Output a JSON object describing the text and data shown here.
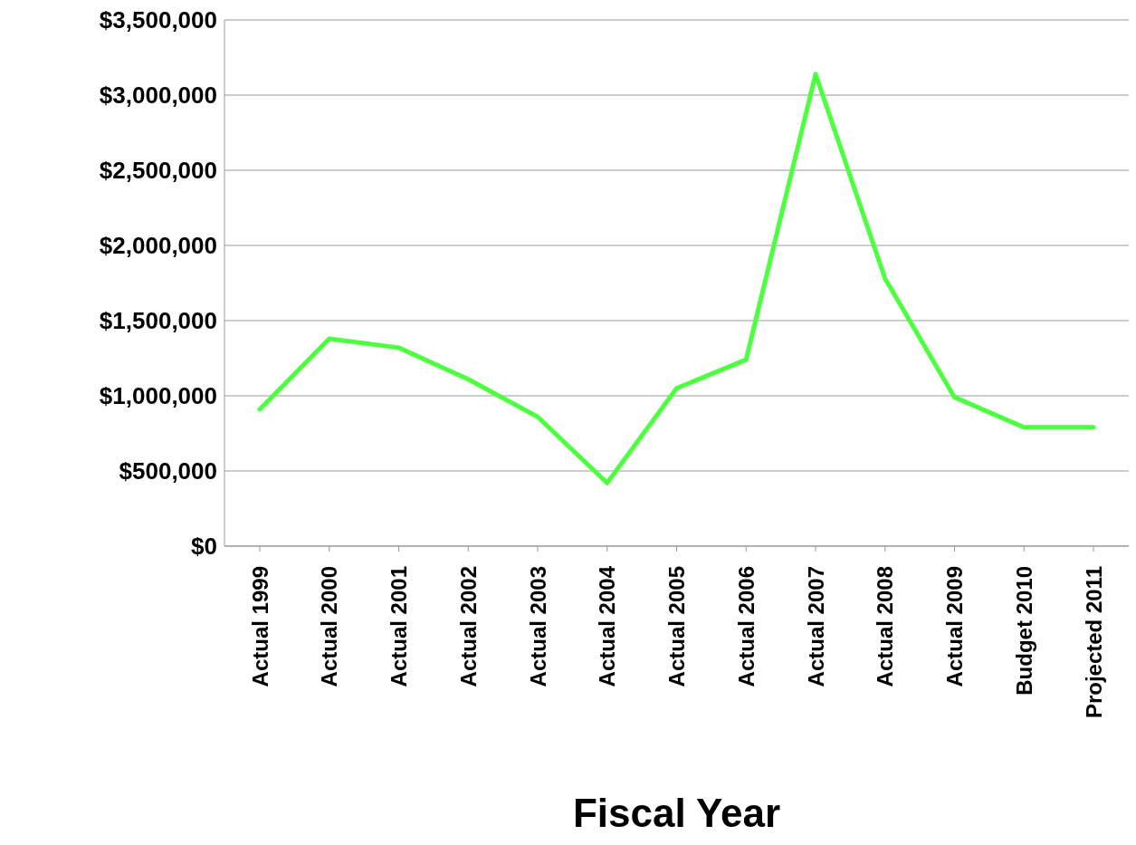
{
  "chart_data": {
    "type": "line",
    "xlabel": "Fiscal Year",
    "categories": [
      "Actual 1999",
      "Actual 2000",
      "Actual 2001",
      "Actual 2002",
      "Actual 2003",
      "Actual 2004",
      "Actual 2005",
      "Actual 2006",
      "Actual 2007",
      "Actual 2008",
      "Actual 2009",
      "Budget 2010",
      "Projected 2011"
    ],
    "series": [
      {
        "color": "#4cff3f",
        "values": [
          910000,
          1380000,
          1320000,
          1110000,
          860000,
          420000,
          1050000,
          1240000,
          3140000,
          1780000,
          990000,
          790000,
          790000
        ]
      }
    ],
    "ylim": [
      0,
      3500000
    ],
    "yticks": [
      {
        "value": 0,
        "label": "$0"
      },
      {
        "value": 500000,
        "label": "$500,000"
      },
      {
        "value": 1000000,
        "label": "$1,000,000"
      },
      {
        "value": 1500000,
        "label": "$1,500,000"
      },
      {
        "value": 2000000,
        "label": "$2,000,000"
      },
      {
        "value": 2500000,
        "label": "$2,500,000"
      },
      {
        "value": 3000000,
        "label": "$3,000,000"
      },
      {
        "value": 3500000,
        "label": "$3,500,000"
      }
    ],
    "grid": "y",
    "legend": false,
    "marker": "none",
    "line_style": "solid"
  }
}
